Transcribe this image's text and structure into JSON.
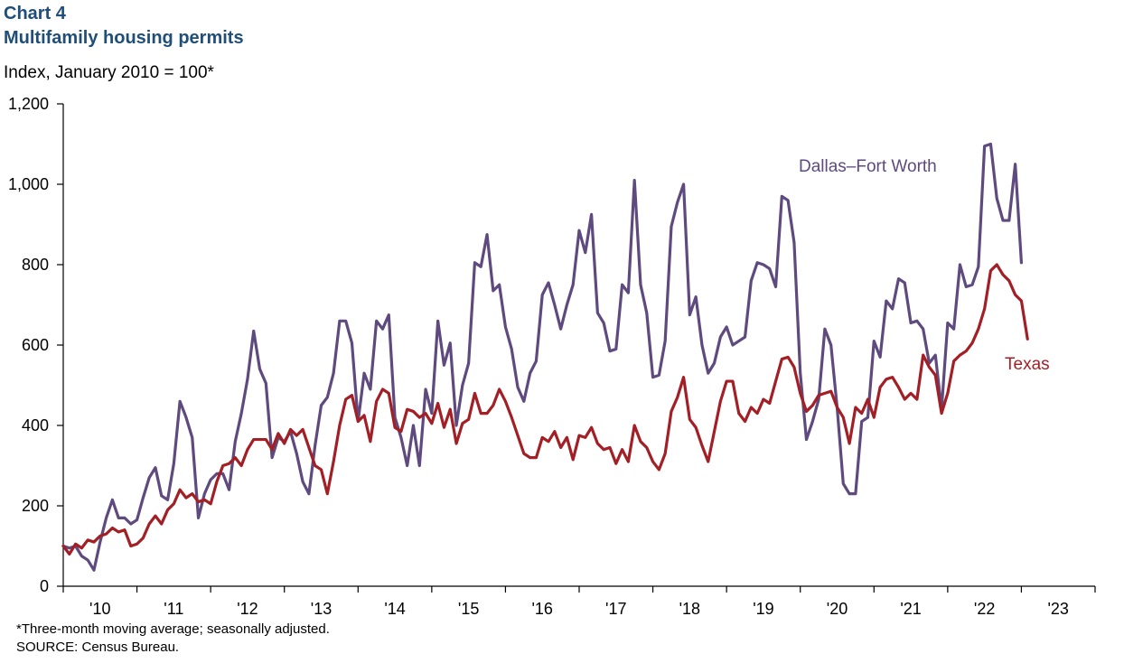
{
  "header": {
    "chart_number": "Chart 4",
    "title": "Multifamily housing permits",
    "y_units": "Index, January 2010 = 100*"
  },
  "footer": {
    "footnote": "*Three-month moving average; seasonally adjusted.",
    "source": "SOURCE:  Census Bureau."
  },
  "colors": {
    "title": "#1f4e79",
    "dfw": "#5e4a7e",
    "texas": "#a31f26",
    "axis": "#000000"
  },
  "chart_data": {
    "type": "line",
    "title": "Multifamily housing permits",
    "xlabel": "",
    "ylabel": "Index, January 2010 = 100*",
    "ylim": [
      0,
      1200
    ],
    "yticks": [
      0,
      200,
      400,
      600,
      800,
      1000,
      1200
    ],
    "ytick_labels": [
      "0",
      "200",
      "400",
      "600",
      "800",
      "1,000",
      "1,200"
    ],
    "xlim_months": [
      0,
      168
    ],
    "xtick_labels": [
      "'10",
      "'11",
      "'12",
      "'13",
      "'14",
      "'15",
      "'16",
      "'17",
      "'18",
      "'19",
      "'20",
      "'21",
      "'22",
      "'23"
    ],
    "grid": false,
    "legend": "inline labels",
    "start": "2010-01",
    "series": [
      {
        "name": "Dallas–Fort Worth",
        "label_position": "upper-right",
        "values": [
          100,
          95,
          100,
          75,
          65,
          40,
          110,
          170,
          215,
          170,
          170,
          155,
          165,
          220,
          270,
          295,
          225,
          215,
          305,
          460,
          420,
          370,
          170,
          230,
          265,
          280,
          280,
          240,
          360,
          430,
          515,
          635,
          540,
          505,
          320,
          370,
          360,
          385,
          330,
          260,
          230,
          350,
          450,
          470,
          530,
          660,
          660,
          605,
          410,
          530,
          490,
          660,
          640,
          675,
          420,
          370,
          300,
          400,
          300,
          490,
          430,
          660,
          550,
          605,
          400,
          500,
          555,
          805,
          795,
          875,
          735,
          750,
          645,
          590,
          495,
          460,
          530,
          560,
          725,
          755,
          700,
          640,
          700,
          750,
          885,
          830,
          925,
          680,
          655,
          585,
          590,
          750,
          730,
          1010,
          750,
          680,
          520,
          525,
          610,
          895,
          955,
          1000,
          675,
          720,
          600,
          530,
          555,
          620,
          645,
          600,
          610,
          620,
          760,
          805,
          800,
          790,
          745,
          970,
          960,
          855,
          530,
          365,
          410,
          465,
          640,
          600,
          445,
          255,
          230,
          230,
          410,
          420,
          610,
          570,
          710,
          690,
          765,
          755,
          655,
          660,
          640,
          555,
          575,
          440,
          655,
          640,
          800,
          745,
          750,
          795,
          1095,
          1100,
          965,
          910,
          910,
          1050,
          805
        ]
      },
      {
        "name": "Texas",
        "label_position": "right",
        "values": [
          100,
          80,
          105,
          95,
          115,
          110,
          125,
          130,
          145,
          135,
          140,
          100,
          105,
          120,
          155,
          175,
          155,
          190,
          205,
          240,
          220,
          230,
          210,
          215,
          205,
          260,
          300,
          305,
          320,
          300,
          340,
          365,
          365,
          365,
          340,
          380,
          355,
          390,
          375,
          390,
          345,
          300,
          290,
          230,
          310,
          400,
          465,
          475,
          410,
          425,
          360,
          460,
          490,
          480,
          395,
          385,
          440,
          435,
          420,
          430,
          405,
          455,
          395,
          440,
          355,
          405,
          415,
          480,
          430,
          430,
          450,
          490,
          460,
          420,
          375,
          330,
          320,
          320,
          370,
          360,
          385,
          345,
          370,
          315,
          375,
          370,
          395,
          355,
          340,
          345,
          305,
          340,
          310,
          400,
          360,
          345,
          310,
          290,
          330,
          435,
          470,
          520,
          415,
          395,
          350,
          310,
          385,
          460,
          510,
          510,
          430,
          410,
          445,
          430,
          465,
          455,
          510,
          565,
          570,
          545,
          480,
          435,
          450,
          475,
          480,
          485,
          445,
          420,
          355,
          445,
          430,
          465,
          420,
          495,
          515,
          520,
          495,
          465,
          480,
          465,
          575,
          545,
          525,
          430,
          480,
          560,
          575,
          585,
          605,
          640,
          690,
          785,
          800,
          775,
          760,
          725,
          710,
          615
        ]
      }
    ]
  }
}
